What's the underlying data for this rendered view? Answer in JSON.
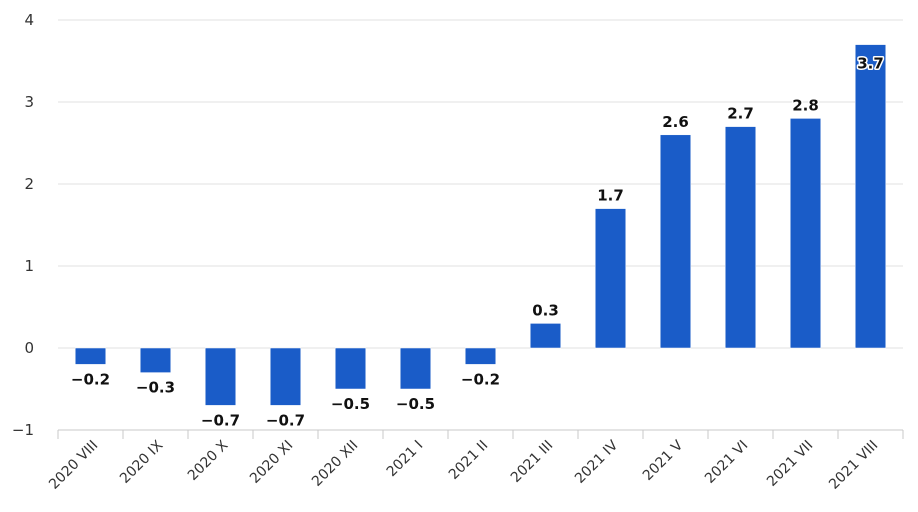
{
  "chart_data": {
    "type": "bar",
    "categories": [
      "2020 VIII",
      "2020 IX",
      "2020 X",
      "2020 XI",
      "2020 XII",
      "2021 I",
      "2021 II",
      "2021 III",
      "2021 IV",
      "2021 V",
      "2021 VI",
      "2021 VII",
      "2021 VIII"
    ],
    "values": [
      -0.2,
      -0.3,
      -0.7,
      -0.7,
      -0.5,
      -0.5,
      -0.2,
      0.3,
      1.7,
      2.6,
      2.7,
      2.8,
      3.7
    ],
    "data_labels": [
      "−0.2",
      "−0.3",
      "−0.7",
      "−0.7",
      "−0.5",
      "−0.5",
      "−0.2",
      "0.3",
      "1.7",
      "2.6",
      "2.7",
      "2.8",
      "3.7"
    ],
    "yticks": [
      -1,
      0,
      1,
      2,
      3,
      4
    ],
    "ytick_labels": [
      "−1",
      "0",
      "1",
      "2",
      "3",
      "4"
    ],
    "ylim": [
      -1,
      4
    ],
    "grid": true,
    "legend": "none",
    "bar_color": "#1a5cc8"
  }
}
